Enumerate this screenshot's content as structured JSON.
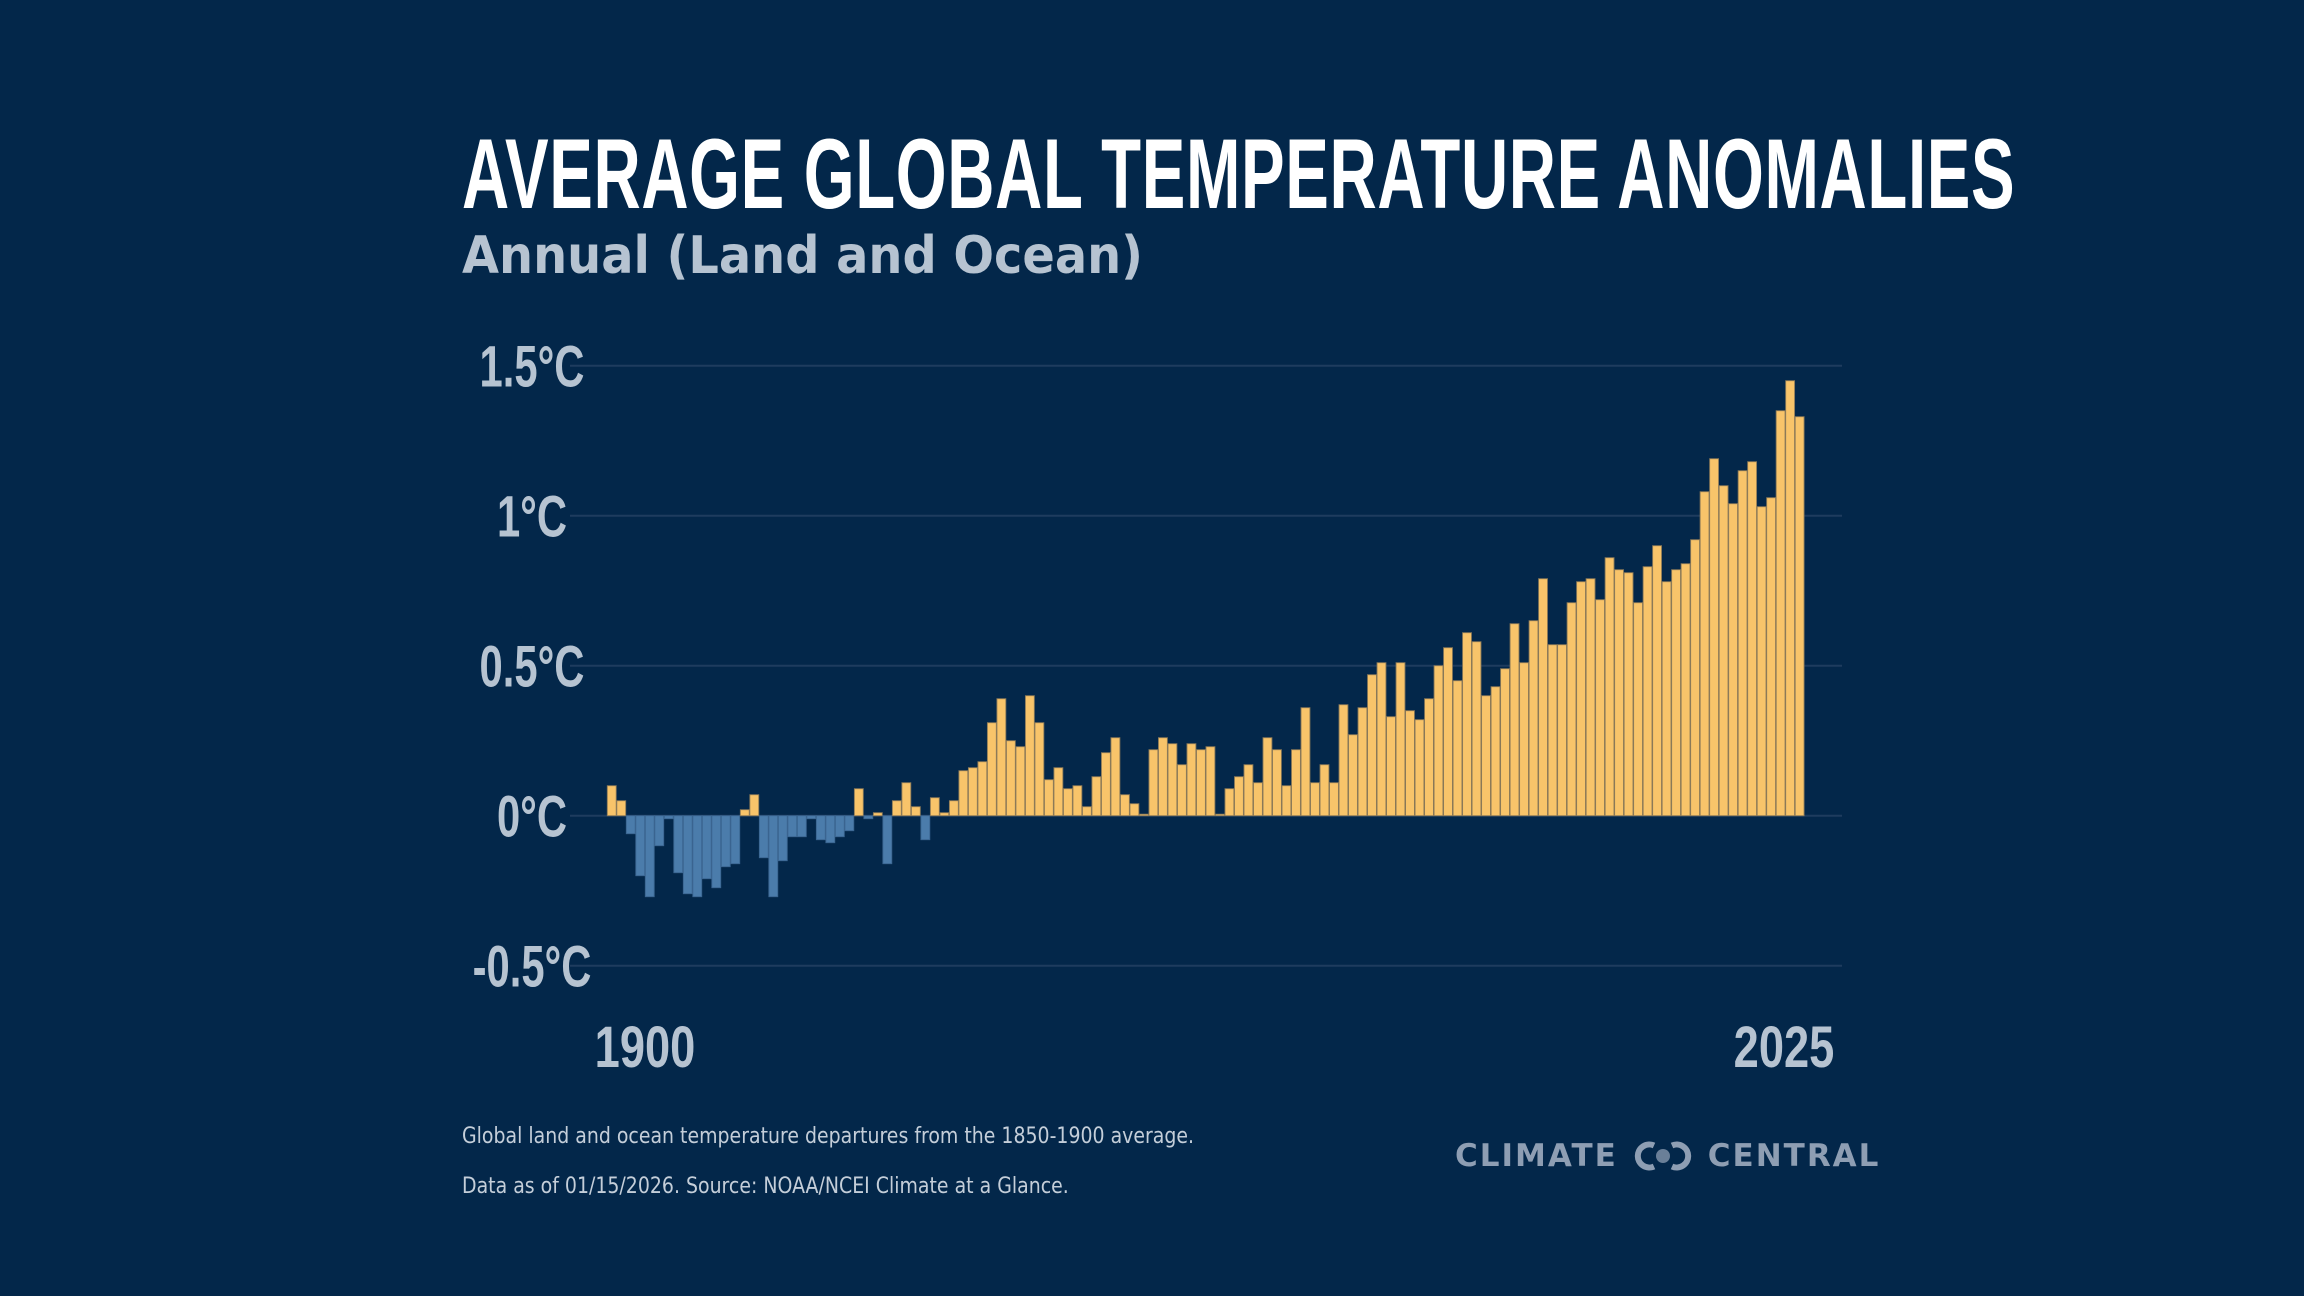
{
  "header": {
    "title": "AVERAGE GLOBAL TEMPERATURE ANOMALIES",
    "subtitle": "Annual (Land and Ocean)"
  },
  "footer": {
    "note_line1": "Global land and ocean temperature departures from the 1850-1900 average.",
    "note_line2": "Data as of 01/15/2026. Source: NOAA/NCEI Climate at a Glance.",
    "logo_left": "CLIMATE",
    "logo_right": "CENTRAL",
    "logo_icon": "interlocking-rings-icon"
  },
  "colors": {
    "background": "#03274a",
    "positive": "#f8c46a",
    "negative": "#4b7cab",
    "gridline": "#1e3c5e",
    "label": "#b6c3d1"
  },
  "chart_data": {
    "type": "bar",
    "title": "AVERAGE GLOBAL TEMPERATURE ANOMALIES",
    "subtitle": "Annual (Land and Ocean)",
    "xlabel": "",
    "ylabel": "",
    "x_start": 1900,
    "x_end": 2025,
    "x_tick_labels": [
      "1900",
      "2025"
    ],
    "y_ticks": [
      1.5,
      1,
      0.5,
      0,
      -0.5
    ],
    "y_tick_labels": [
      "1.5°C",
      "1°C",
      "0.5°C",
      "0°C",
      "-0.5°C"
    ],
    "ylim": [
      -0.5,
      1.5
    ],
    "grid": true,
    "legend": "none",
    "unit": "°C",
    "values": [
      0.1,
      0.05,
      -0.06,
      -0.2,
      -0.27,
      -0.1,
      -0.01,
      -0.19,
      -0.26,
      -0.27,
      -0.21,
      -0.24,
      -0.17,
      -0.16,
      0.02,
      0.07,
      -0.14,
      -0.27,
      -0.15,
      -0.07,
      -0.07,
      -0.01,
      -0.08,
      -0.09,
      -0.07,
      -0.05,
      0.09,
      -0.01,
      0.01,
      -0.16,
      0.05,
      0.11,
      0.03,
      -0.08,
      0.06,
      0.01,
      0.05,
      0.15,
      0.16,
      0.18,
      0.31,
      0.39,
      0.25,
      0.23,
      0.4,
      0.31,
      0.12,
      0.16,
      0.09,
      0.1,
      0.03,
      0.13,
      0.21,
      0.26,
      0.07,
      0.04,
      0.005,
      0.22,
      0.26,
      0.24,
      0.17,
      0.24,
      0.22,
      0.23,
      0.005,
      0.09,
      0.13,
      0.17,
      0.11,
      0.26,
      0.22,
      0.1,
      0.22,
      0.36,
      0.11,
      0.17,
      0.11,
      0.37,
      0.27,
      0.36,
      0.47,
      0.51,
      0.33,
      0.51,
      0.35,
      0.32,
      0.39,
      0.5,
      0.56,
      0.45,
      0.61,
      0.58,
      0.4,
      0.43,
      0.49,
      0.64,
      0.51,
      0.65,
      0.79,
      0.57,
      0.57,
      0.71,
      0.78,
      0.79,
      0.72,
      0.86,
      0.82,
      0.81,
      0.71,
      0.83,
      0.9,
      0.78,
      0.82,
      0.84,
      0.92,
      1.08,
      1.19,
      1.1,
      1.04,
      1.15,
      1.18,
      1.03,
      1.06,
      1.35,
      1.45,
      1.33
    ]
  }
}
